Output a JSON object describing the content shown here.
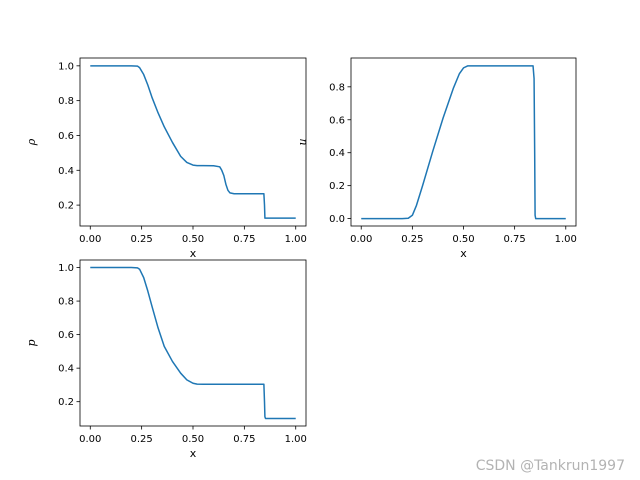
{
  "chart_data": [
    {
      "type": "line",
      "xlabel": "x",
      "ylabel": "ρ",
      "xlim": [
        -0.05,
        1.05
      ],
      "ylim": [
        0.08,
        1.045
      ],
      "xticks": [
        "0.00",
        "0.25",
        "0.50",
        "0.75",
        "1.00"
      ],
      "yticks": [
        "0.2",
        "0.4",
        "0.6",
        "0.8",
        "1.0"
      ],
      "series_color": "#1f77b4",
      "x": [
        0.0,
        0.1,
        0.2,
        0.23,
        0.24,
        0.26,
        0.28,
        0.3,
        0.33,
        0.36,
        0.4,
        0.44,
        0.47,
        0.5,
        0.52,
        0.55,
        0.6,
        0.63,
        0.64,
        0.65,
        0.66,
        0.67,
        0.68,
        0.7,
        0.75,
        0.8,
        0.845,
        0.848,
        0.85,
        0.853,
        0.9,
        0.95,
        1.0
      ],
      "y": [
        1.0,
        1.0,
        1.0,
        0.998,
        0.99,
        0.95,
        0.89,
        0.82,
        0.73,
        0.65,
        0.56,
        0.48,
        0.445,
        0.43,
        0.427,
        0.427,
        0.426,
        0.42,
        0.4,
        0.37,
        0.32,
        0.285,
        0.27,
        0.265,
        0.265,
        0.265,
        0.265,
        0.2,
        0.125,
        0.125,
        0.125,
        0.125,
        0.125
      ]
    },
    {
      "type": "line",
      "xlabel": "x",
      "ylabel": "u",
      "xlim": [
        -0.05,
        1.05
      ],
      "ylim": [
        -0.045,
        0.975
      ],
      "xticks": [
        "0.00",
        "0.25",
        "0.50",
        "0.75",
        "1.00"
      ],
      "yticks": [
        "0.0",
        "0.2",
        "0.4",
        "0.6",
        "0.8"
      ],
      "series_color": "#1f77b4",
      "x": [
        0.0,
        0.1,
        0.2,
        0.23,
        0.25,
        0.27,
        0.3,
        0.35,
        0.4,
        0.45,
        0.48,
        0.5,
        0.52,
        0.55,
        0.6,
        0.7,
        0.8,
        0.84,
        0.845,
        0.848,
        0.85,
        0.853,
        0.9,
        1.0
      ],
      "y": [
        0.0,
        0.0,
        0.0,
        0.002,
        0.02,
        0.08,
        0.2,
        0.41,
        0.61,
        0.79,
        0.88,
        0.915,
        0.927,
        0.927,
        0.927,
        0.927,
        0.927,
        0.927,
        0.85,
        0.4,
        0.02,
        0.0,
        0.0,
        0.0
      ]
    },
    {
      "type": "line",
      "xlabel": "x",
      "ylabel": "p",
      "xlim": [
        -0.05,
        1.05
      ],
      "ylim": [
        0.055,
        1.045
      ],
      "xticks": [
        "0.00",
        "0.25",
        "0.50",
        "0.75",
        "1.00"
      ],
      "yticks": [
        "0.2",
        "0.4",
        "0.6",
        "0.8",
        "1.0"
      ],
      "series_color": "#1f77b4",
      "x": [
        0.0,
        0.1,
        0.2,
        0.23,
        0.24,
        0.26,
        0.28,
        0.3,
        0.33,
        0.36,
        0.4,
        0.44,
        0.47,
        0.5,
        0.52,
        0.55,
        0.6,
        0.7,
        0.8,
        0.845,
        0.848,
        0.85,
        0.853,
        0.9,
        1.0
      ],
      "y": [
        1.0,
        1.0,
        1.0,
        0.998,
        0.99,
        0.94,
        0.86,
        0.77,
        0.64,
        0.53,
        0.44,
        0.37,
        0.33,
        0.31,
        0.305,
        0.304,
        0.304,
        0.304,
        0.304,
        0.304,
        0.2,
        0.11,
        0.1,
        0.1,
        0.1
      ]
    }
  ],
  "watermark": "CSDN @Tankrun1997"
}
